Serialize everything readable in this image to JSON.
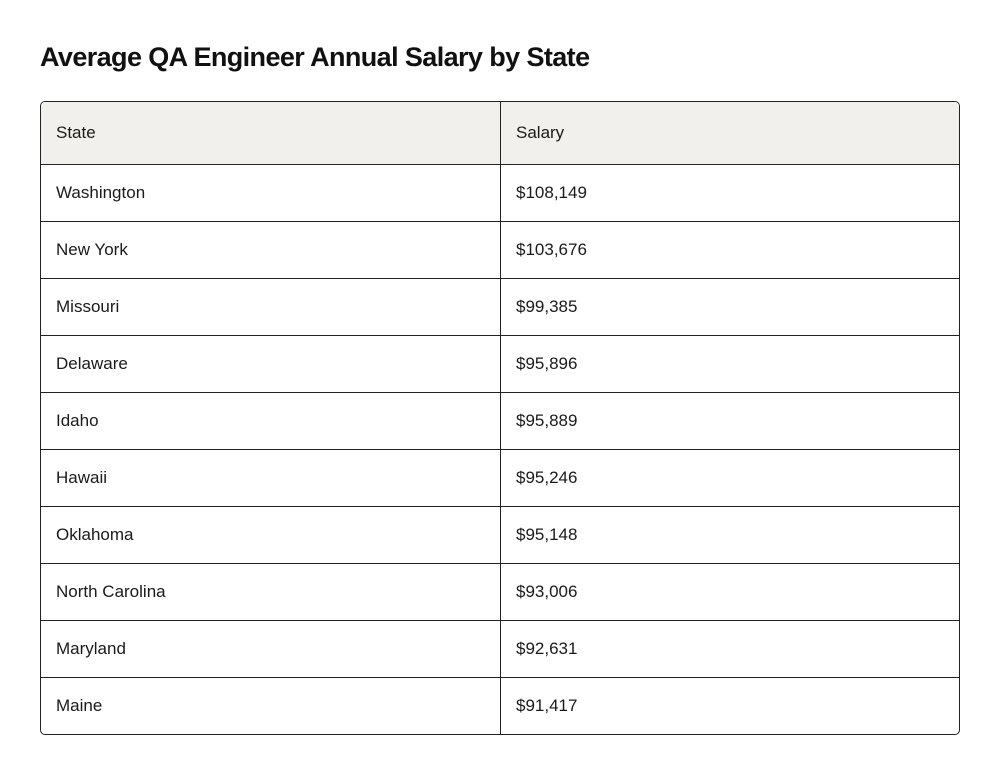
{
  "title": "Average QA Engineer Annual Salary by State",
  "chart_data": {
    "type": "table",
    "title": "Average QA Engineer Annual Salary by State",
    "columns": [
      "State",
      "Salary"
    ],
    "rows": [
      [
        "Washington",
        "$108,149"
      ],
      [
        "New York",
        "$103,676"
      ],
      [
        "Missouri",
        "$99,385"
      ],
      [
        "Delaware",
        "$95,896"
      ],
      [
        "Idaho",
        "$95,889"
      ],
      [
        "Hawaii",
        "$95,246"
      ],
      [
        "Oklahoma",
        "$95,148"
      ],
      [
        "North Carolina",
        "$93,006"
      ],
      [
        "Maryland",
        "$92,631"
      ],
      [
        "Maine",
        "$91,417"
      ]
    ]
  },
  "colors": {
    "header_bg": "#f1f0ec",
    "border": "#222222"
  }
}
